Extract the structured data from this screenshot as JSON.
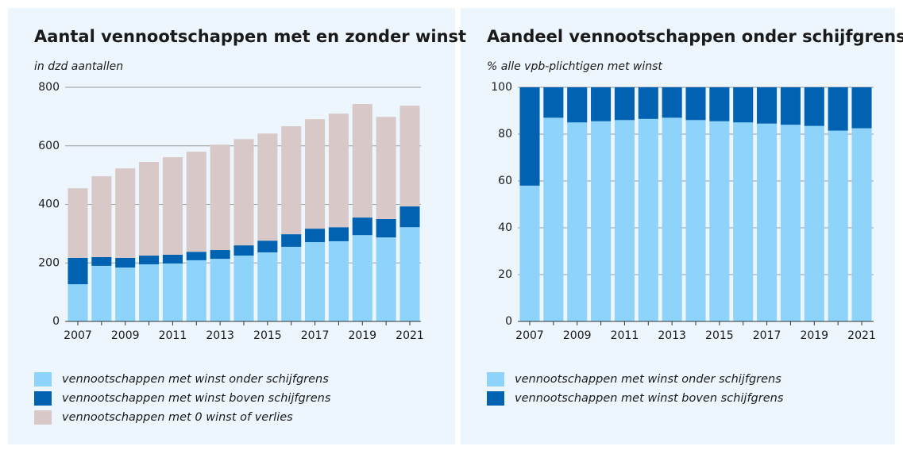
{
  "chart_data": [
    {
      "type": "bar",
      "stacked": true,
      "title": "Aantal vennootschappen met en zonder winst",
      "subtitle": "in dzd aantallen",
      "categories": [
        "2007",
        null,
        "2009",
        null,
        "2011",
        null,
        "2013",
        null,
        "2015",
        null,
        "2017",
        null,
        "2019",
        null,
        "2021"
      ],
      "series": [
        {
          "name": "vennootschappen met winst onder schijfgrens",
          "color": "#8dd3fa",
          "values": [
            127,
            190,
            184,
            195,
            198,
            209,
            214,
            225,
            236,
            255,
            271,
            274,
            295,
            287,
            322
          ]
        },
        {
          "name": "vennootschappen met winst boven schijfgrens",
          "color": "#0062b0",
          "values": [
            90,
            30,
            33,
            30,
            30,
            29,
            30,
            35,
            40,
            43,
            46,
            48,
            60,
            63,
            71
          ]
        },
        {
          "name": "vennootschappen met 0 winst of verlies",
          "color": "#d9c8c8",
          "values": [
            238,
            276,
            306,
            320,
            333,
            342,
            360,
            363,
            366,
            369,
            374,
            388,
            388,
            349,
            344
          ]
        }
      ],
      "ylim": [
        0,
        800
      ],
      "yticks": [
        0,
        200,
        400,
        600,
        800
      ],
      "grid": true
    },
    {
      "type": "bar",
      "stacked": true,
      "title": "Aandeel vennootschappen onder schijfgrens",
      "subtitle": "% alle vpb-plichtigen met winst",
      "categories": [
        "2007",
        null,
        "2009",
        null,
        "2011",
        null,
        "2013",
        null,
        "2015",
        null,
        "2017",
        null,
        "2019",
        null,
        "2021"
      ],
      "series": [
        {
          "name": "vennootschappen met winst onder schijfgrens",
          "color": "#8dd3fa",
          "values": [
            58,
            87,
            85,
            85.5,
            86,
            86.5,
            87,
            86,
            85.5,
            85,
            84.5,
            84,
            83.5,
            81.5,
            82.5
          ]
        },
        {
          "name": "vennootschappen met winst boven schijfgrens",
          "color": "#0062b0",
          "values": [
            42,
            13,
            15,
            14.5,
            14,
            13.5,
            13,
            14,
            14.5,
            15,
            15.5,
            16,
            16.5,
            18.5,
            17.5
          ]
        }
      ],
      "ylim": [
        0,
        100
      ],
      "yticks": [
        0,
        20,
        40,
        60,
        80,
        100
      ],
      "grid": true
    }
  ]
}
